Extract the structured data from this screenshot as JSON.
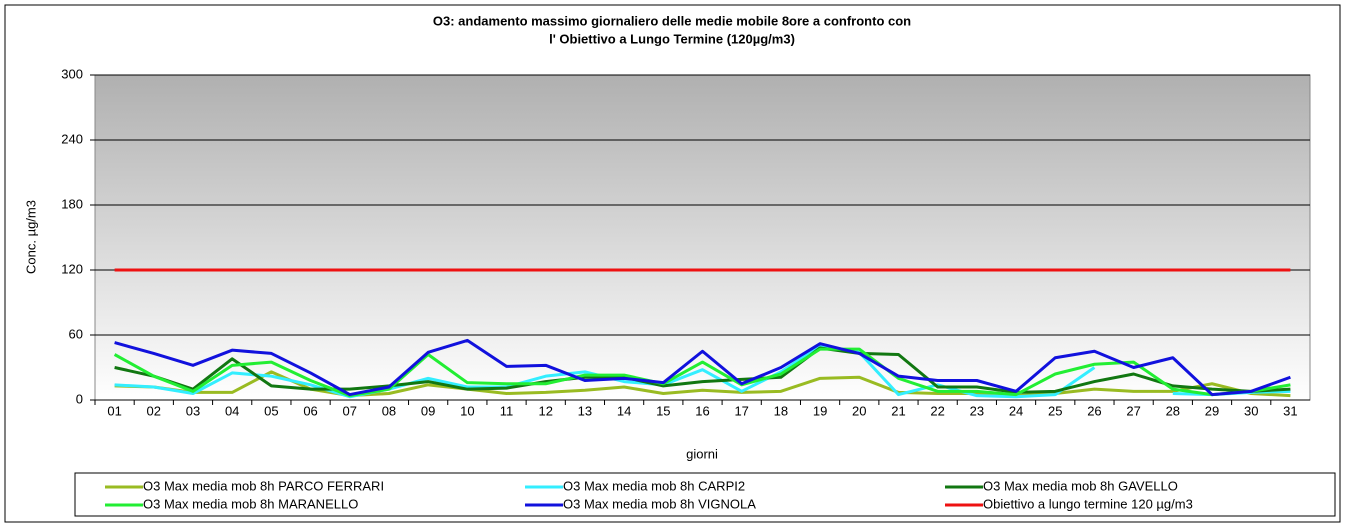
{
  "chart_data": {
    "type": "line",
    "title": [
      "O3: andamento massimo giornaliero delle medie mobile 8ore a confronto con",
      "l' Obiettivo a Lungo Termine  (120µg/m3)"
    ],
    "xlabel": "giorni",
    "ylabel": "Conc. µg/m3",
    "categories": [
      "01",
      "02",
      "03",
      "04",
      "05",
      "06",
      "07",
      "08",
      "09",
      "10",
      "11",
      "12",
      "13",
      "14",
      "15",
      "16",
      "17",
      "18",
      "19",
      "20",
      "21",
      "22",
      "23",
      "24",
      "25",
      "26",
      "27",
      "28",
      "29",
      "30",
      "31"
    ],
    "ylim": [
      0,
      300
    ],
    "yticks": [
      0,
      60,
      120,
      180,
      240,
      300
    ],
    "grid": true,
    "legend": "bottom",
    "series": [
      {
        "name": "O3 Max media mob 8h  PARCO FERRARI",
        "color": "#99bb22",
        "values": [
          13,
          12,
          7,
          7,
          26,
          10,
          4,
          6,
          14,
          10,
          6,
          7,
          9,
          12,
          6,
          9,
          7,
          8,
          20,
          21,
          7,
          6,
          6,
          4,
          6,
          10,
          8,
          8,
          15,
          6,
          4
        ]
      },
      {
        "name": "O3 Max media mob 8h  CARPI2",
        "color": "#33eeff",
        "values": [
          14,
          12,
          6,
          25,
          22,
          14,
          3,
          10,
          20,
          12,
          12,
          22,
          26,
          17,
          14,
          28,
          8,
          26,
          50,
          44,
          5,
          14,
          4,
          3,
          5,
          30,
          null,
          6,
          5,
          7,
          8
        ]
      },
      {
        "name": "O3 Max media mob 8h  GAVELLO",
        "color": "#117711",
        "values": [
          30,
          22,
          10,
          38,
          13,
          10,
          10,
          13,
          17,
          10,
          11,
          17,
          21,
          21,
          13,
          17,
          19,
          21,
          48,
          43,
          42,
          12,
          12,
          7,
          8,
          17,
          24,
          13,
          10,
          8,
          10
        ]
      },
      {
        "name": "O3 Max media mob 8h  MARANELLO",
        "color": "#22ee33",
        "values": [
          42,
          22,
          8,
          32,
          35,
          18,
          4,
          10,
          42,
          16,
          15,
          15,
          23,
          23,
          15,
          35,
          14,
          24,
          47,
          47,
          20,
          8,
          8,
          5,
          24,
          33,
          35,
          10,
          5,
          8,
          14
        ]
      },
      {
        "name": "O3 Max media mob 8h  VIGNOLA",
        "color": "#1111dd",
        "values": [
          53,
          43,
          32,
          46,
          43,
          25,
          5,
          12,
          44,
          55,
          31,
          32,
          18,
          20,
          16,
          45,
          15,
          30,
          52,
          43,
          22,
          18,
          18,
          8,
          39,
          45,
          30,
          39,
          5,
          8,
          21
        ]
      },
      {
        "name": "Obiettivo  a lungo termine 120 µg/m3",
        "color": "#ee1111",
        "values": [
          120,
          120,
          120,
          120,
          120,
          120,
          120,
          120,
          120,
          120,
          120,
          120,
          120,
          120,
          120,
          120,
          120,
          120,
          120,
          120,
          120,
          120,
          120,
          120,
          120,
          120,
          120,
          120,
          120,
          120,
          120
        ]
      }
    ]
  }
}
